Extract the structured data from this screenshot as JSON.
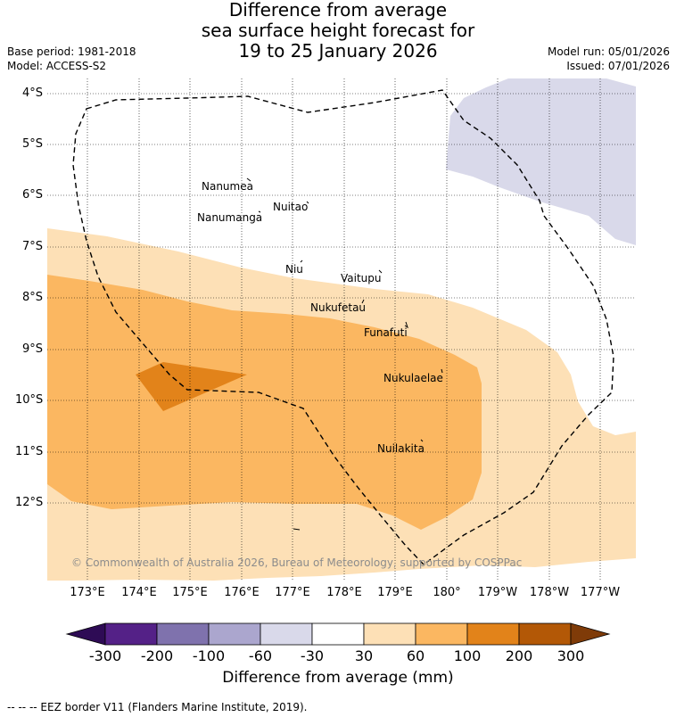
{
  "title": {
    "line1": "Difference from average",
    "line2": "sea surface height forecast for",
    "line3": "19 to 25 January 2026"
  },
  "meta": {
    "base_period": "Base period: 1981-2018",
    "model": "Model: ACCESS-S2",
    "model_run": "Model run: 05/01/2026",
    "issued": "Issued: 07/01/2026"
  },
  "lat_labels": [
    "4°S",
    "5°S",
    "6°S",
    "7°S",
    "8°S",
    "9°S",
    "10°S",
    "11°S",
    "12°S"
  ],
  "lon_labels": [
    "173°E",
    "174°E",
    "175°E",
    "176°E",
    "177°E",
    "178°E",
    "179°E",
    "180°",
    "179°W",
    "178°W",
    "177°W"
  ],
  "places": [
    "Nanumea",
    "Nuitao",
    "Nanumanga",
    "Niu",
    "Vaitupu",
    "Nukufetau",
    "Funafuti",
    "Nukulaelae",
    "Nuilakita"
  ],
  "copyright": "© Commonwealth of Australia 2026, Bureau of Meteorology, supported by COSPPac",
  "colorbar": {
    "ticks": [
      "-300",
      "-200",
      "-100",
      "-60",
      "-30",
      "30",
      "60",
      "100",
      "200",
      "300"
    ],
    "colors": [
      "#2e0b55",
      "#542187",
      "#7f72ad",
      "#aba6ce",
      "#d9d9ea",
      "#ffffff",
      "#fde0b6",
      "#fbb761",
      "#e2831a",
      "#b35806",
      "#7f3b08"
    ],
    "label": "Difference from average (mm)"
  },
  "footer": "--  --  -- EEZ border V11 (Flanders Marine Institute, 2019)."
}
